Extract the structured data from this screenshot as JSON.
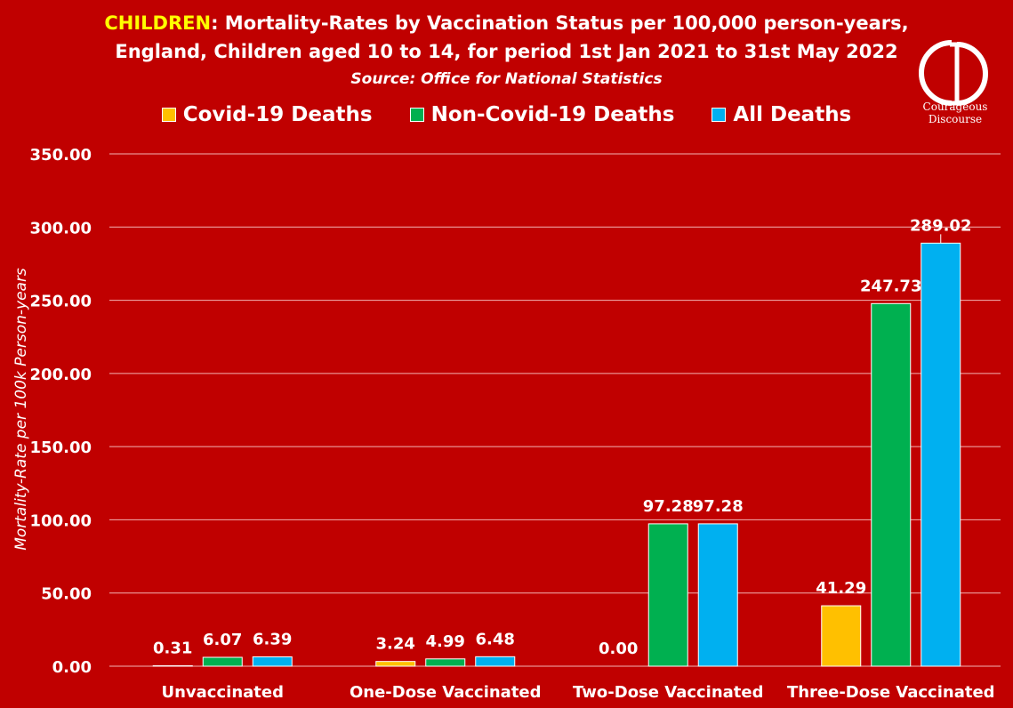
{
  "title": {
    "highlight": "CHILDREN",
    "line1_rest": ": Mortality-Rates by Vaccination Status per 100,000 person-years,",
    "line2": "England, Children aged 10 to 14, for period 1st Jan 2021 to 31st May 2022"
  },
  "source": "Source: Office for National Statistics",
  "logo": {
    "line1": "Courageous",
    "line2": "Discourse"
  },
  "colors": {
    "background": "#c00000",
    "covid": "#ffc000",
    "non_covid": "#00b050",
    "all": "#00b0f0"
  },
  "chart_data": {
    "type": "bar",
    "categories": [
      "Unvaccinated",
      "One-Dose Vaccinated",
      "Two-Dose Vaccinated",
      "Three-Dose Vaccinated"
    ],
    "series": [
      {
        "name": "Covid-19 Deaths",
        "color": "#ffc000",
        "values": [
          0.31,
          3.24,
          0.0,
          41.29
        ],
        "labels": [
          "0.31",
          "3.24",
          "0.00",
          "41.29"
        ]
      },
      {
        "name": "Non-Covid-19 Deaths",
        "color": "#00b050",
        "values": [
          6.07,
          4.99,
          97.28,
          247.73
        ],
        "labels": [
          "6.07",
          "4.99",
          "97.28",
          "247.73"
        ]
      },
      {
        "name": "All Deaths",
        "color": "#00b0f0",
        "values": [
          6.39,
          6.48,
          97.28,
          289.02
        ],
        "labels": [
          "6.39",
          "6.48",
          "97.28",
          "289.02"
        ]
      }
    ],
    "ylabel": "Mortality-Rate per 100k Person-years",
    "xlabel": "",
    "ylim": [
      0,
      350
    ],
    "yticks": [
      0,
      50,
      100,
      150,
      200,
      250,
      300,
      350
    ],
    "ytick_labels": [
      "0.00",
      "50.00",
      "100.00",
      "150.00",
      "200.00",
      "250.00",
      "300.00",
      "350.00"
    ],
    "grid": true,
    "legend": "top"
  }
}
